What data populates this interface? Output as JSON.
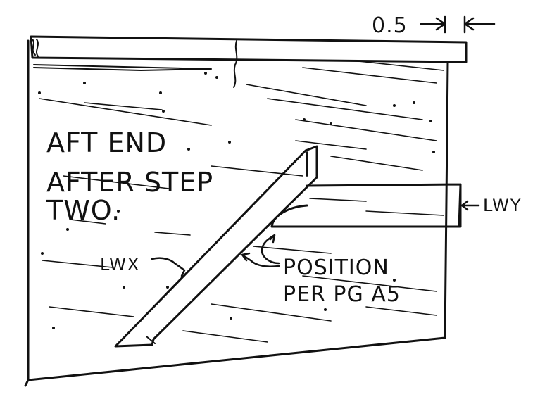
{
  "colors": {
    "ink": "#111111",
    "paper": "#ffffff"
  },
  "labels": {
    "dimension": "0.5",
    "caption_line1": "AFT END",
    "caption_line2": "AFTER STEP",
    "caption_line3": "TWO.",
    "part_left": "LWX",
    "part_right": "LWY",
    "note_line1": "POSITION",
    "note_line2": "PER PG A5"
  }
}
